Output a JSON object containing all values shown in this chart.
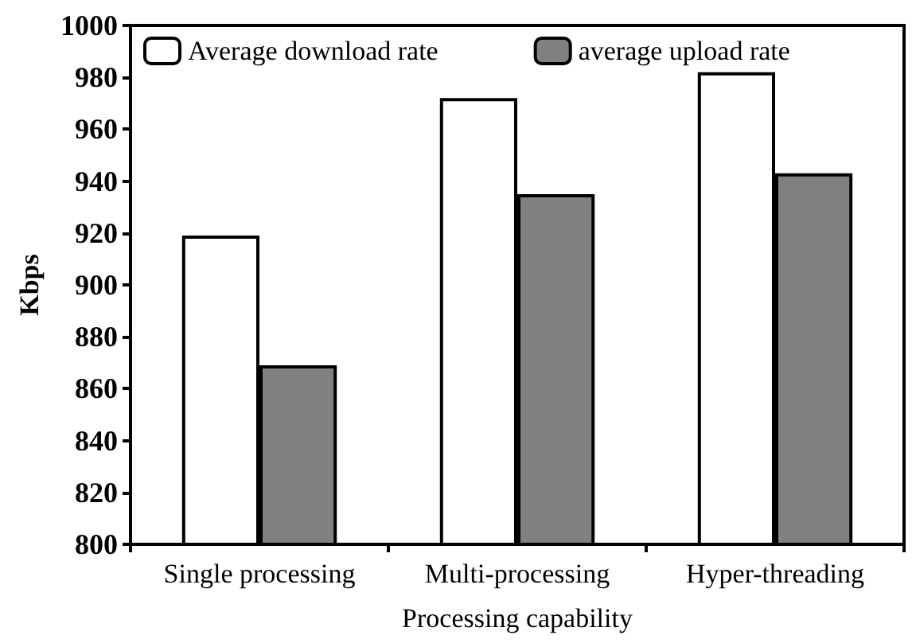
{
  "chart_data": {
    "type": "bar",
    "xlabel": "Processing capability",
    "ylabel": "Kbps",
    "categories": [
      "Single processing",
      "Multi-processing",
      "Hyper-threading"
    ],
    "series": [
      {
        "name": "Average download rate",
        "color": "#ffffff",
        "values": [
          919,
          972,
          982
        ]
      },
      {
        "name": "average upload rate",
        "color": "#808080",
        "values": [
          869,
          935,
          943
        ]
      }
    ],
    "ylim": [
      800,
      1000
    ],
    "yticks": [
      800,
      820,
      840,
      860,
      880,
      900,
      920,
      940,
      960,
      980,
      1000
    ],
    "grid": false,
    "legend": "top"
  }
}
